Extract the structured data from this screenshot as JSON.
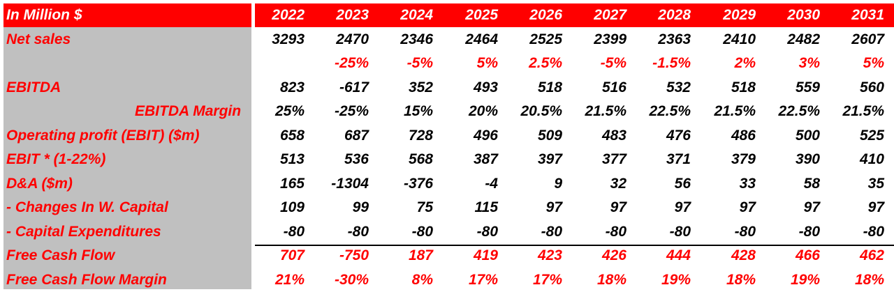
{
  "header": {
    "title": "In Million $",
    "years": [
      "2022",
      "2023",
      "2024",
      "2025",
      "2026",
      "2027",
      "2028",
      "2029",
      "2030",
      "2031"
    ]
  },
  "rows": [
    {
      "label": "Net sales",
      "values": [
        "3293",
        "2470",
        "2346",
        "2464",
        "2525",
        "2399",
        "2363",
        "2410",
        "2482",
        "2607"
      ],
      "color": "#000000"
    },
    {
      "label": "",
      "values": [
        "",
        "-25%",
        "-5%",
        "5%",
        "2.5%",
        "-5%",
        "-1.5%",
        "2%",
        "3%",
        "5%"
      ],
      "color": "#ff0000"
    },
    {
      "label": "EBITDA",
      "values": [
        "823",
        "-617",
        "352",
        "493",
        "518",
        "516",
        "532",
        "518",
        "559",
        "560"
      ],
      "color": "#000000"
    },
    {
      "label": "EBITDA Margin",
      "values": [
        "25%",
        "-25%",
        "15%",
        "20%",
        "20.5%",
        "21.5%",
        "22.5%",
        "21.5%",
        "22.5%",
        "21.5%"
      ],
      "color": "#000000"
    },
    {
      "label": "Operating profit (EBIT) ($m)",
      "values": [
        "658",
        "687",
        "728",
        "496",
        "509",
        "483",
        "476",
        "486",
        "500",
        "525"
      ],
      "color": "#000000"
    },
    {
      "label": "EBIT * (1-22%)",
      "values": [
        "513",
        "536",
        "568",
        "387",
        "397",
        "377",
        "371",
        "379",
        "390",
        "410"
      ],
      "color": "#000000"
    },
    {
      "label": "D&A ($m)",
      "values": [
        "165",
        "-1304",
        "-376",
        "-4",
        "9",
        "32",
        "56",
        "33",
        "58",
        "35"
      ],
      "color": "#000000"
    },
    {
      "label": "- Changes In W. Capital",
      "values": [
        "109",
        "99",
        "75",
        "115",
        "97",
        "97",
        "97",
        "97",
        "97",
        "97"
      ],
      "color": "#000000"
    },
    {
      "label": "- Capital Expenditures",
      "values": [
        "-80",
        "-80",
        "-80",
        "-80",
        "-80",
        "-80",
        "-80",
        "-80",
        "-80",
        "-80"
      ],
      "color": "#000000"
    },
    {
      "label": "Free Cash Flow",
      "values": [
        "707",
        "-750",
        "187",
        "419",
        "423",
        "426",
        "444",
        "428",
        "466",
        "462"
      ],
      "color": "#ff0000"
    },
    {
      "label": "Free Cash Flow Margin",
      "values": [
        "21%",
        "-30%",
        "8%",
        "17%",
        "17%",
        "18%",
        "19%",
        "18%",
        "19%",
        "18%"
      ],
      "color": "#ff0000"
    }
  ]
}
